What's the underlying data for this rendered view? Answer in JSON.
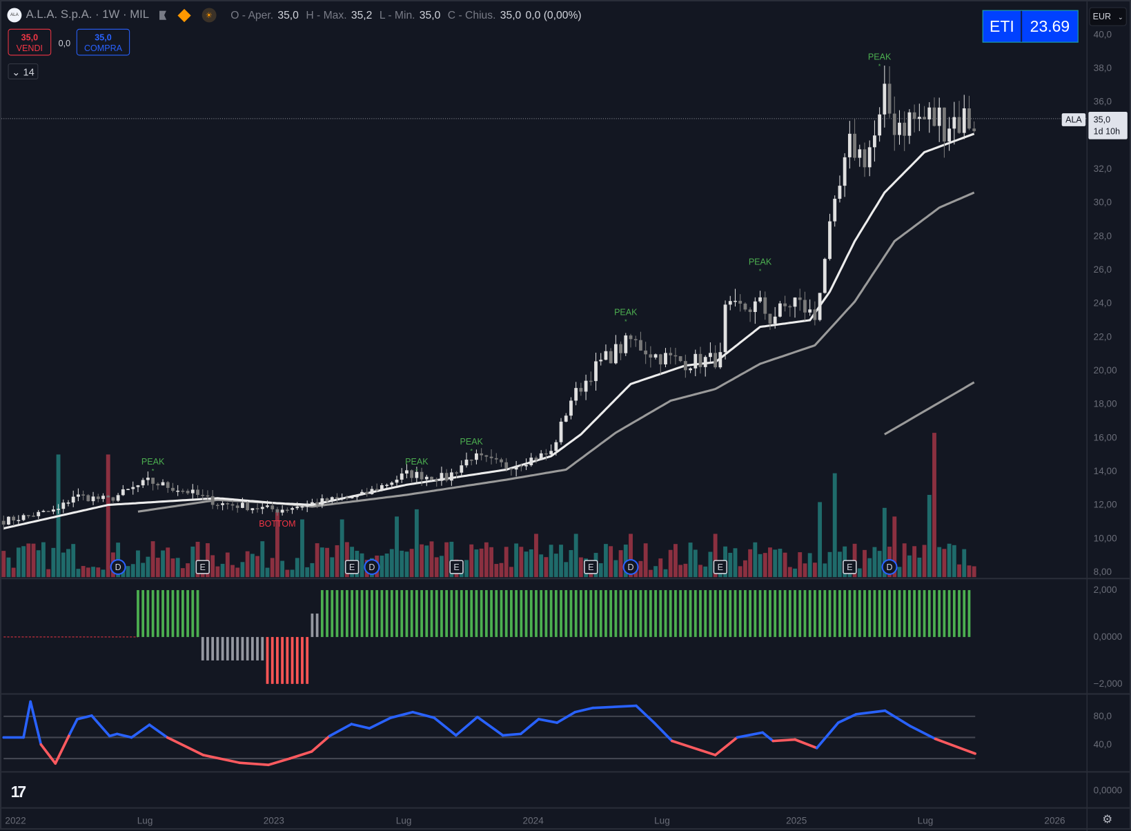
{
  "header": {
    "logo_text": "ALA",
    "symbol": "A.L.A. S.p.A. · 1W · MIL",
    "ohlc": [
      {
        "k": "O - Aper.",
        "v": "35,0"
      },
      {
        "k": "H - Max.",
        "v": "35,2"
      },
      {
        "k": "L - Min.",
        "v": "35,0"
      },
      {
        "k": "C - Chius.",
        "v": "35,0"
      }
    ],
    "change": "0,0 (0,00%)"
  },
  "trade": {
    "sell_price": "35,0",
    "sell_label": "VENDI",
    "spread": "0,0",
    "buy_price": "35,0",
    "buy_label": "COMPRA"
  },
  "indicators_collapsed": "14",
  "eti": {
    "label": "ETI",
    "value": "23.69"
  },
  "currency": "EUR",
  "last_price": {
    "tag": "ALA",
    "price": "35,0",
    "countdown": "1d 10h"
  },
  "colors": {
    "bg": "#131722",
    "up": "#e0e0e0",
    "down": "#7a7a7a",
    "vol_up": "#1f6b6b",
    "vol_down": "#8b3040",
    "green": "#4caf50",
    "red": "#f23645",
    "blue": "#2962ff",
    "peak": "#4caf50"
  },
  "chart_data": {
    "type": "candlestick",
    "weeks": 196,
    "price_range": [
      8,
      40
    ],
    "price_ticks": [
      "40,0",
      "38,0",
      "36,0",
      "32,0",
      "30,0",
      "28,0",
      "26,0",
      "24,0",
      "22,0",
      "20,00",
      "18,00",
      "16,00",
      "14,00",
      "12,00",
      "10,00",
      "8,00"
    ],
    "price_tick_values": [
      40,
      38,
      36,
      32,
      30,
      28,
      26,
      24,
      22,
      20,
      18,
      16,
      14,
      12,
      10,
      8
    ],
    "close_keypoints": [
      [
        0,
        11.05
      ],
      [
        11,
        11.7
      ],
      [
        14,
        12.55
      ],
      [
        21,
        12.3
      ],
      [
        29,
        13.4
      ],
      [
        37,
        12.8
      ],
      [
        43,
        12.1
      ],
      [
        55,
        11.7
      ],
      [
        62,
        12.1
      ],
      [
        72,
        12.55
      ],
      [
        81,
        13.85
      ],
      [
        89,
        13.6
      ],
      [
        94,
        14.9
      ],
      [
        101,
        14.3
      ],
      [
        110,
        15.1
      ],
      [
        114,
        18.3
      ],
      [
        120,
        20.5
      ],
      [
        126,
        21.8
      ],
      [
        131,
        20.9
      ],
      [
        137,
        20.5
      ],
      [
        144,
        20.7
      ],
      [
        145,
        23.5
      ],
      [
        152,
        23.9
      ],
      [
        154,
        23.1
      ],
      [
        159,
        24.2
      ],
      [
        163,
        23.1
      ],
      [
        165,
        26.9
      ],
      [
        168,
        30.8
      ],
      [
        170,
        33.4
      ],
      [
        173,
        32.7
      ],
      [
        176,
        34.5
      ],
      [
        177,
        35.8
      ],
      [
        179,
        34.9
      ],
      [
        195,
        35.0
      ]
    ],
    "ma_fast": [
      [
        0,
        10.6
      ],
      [
        21,
        12.0
      ],
      [
        43,
        12.4
      ],
      [
        55,
        12.1
      ],
      [
        62,
        12.0
      ],
      [
        81,
        13.2
      ],
      [
        101,
        14.1
      ],
      [
        110,
        14.9
      ],
      [
        116,
        16.2
      ],
      [
        126,
        19.2
      ],
      [
        137,
        20.3
      ],
      [
        143,
        20.5
      ],
      [
        152,
        22.6
      ],
      [
        162,
        23.0
      ],
      [
        166,
        24.7
      ],
      [
        171,
        27.7
      ],
      [
        177,
        30.6
      ],
      [
        185,
        33.0
      ],
      [
        195,
        34.1
      ]
    ],
    "ma_slow": [
      [
        27,
        11.6
      ],
      [
        43,
        12.3
      ],
      [
        55,
        12.1
      ],
      [
        62,
        11.9
      ],
      [
        81,
        12.6
      ],
      [
        101,
        13.5
      ],
      [
        113,
        14.1
      ],
      [
        123,
        16.3
      ],
      [
        134,
        18.2
      ],
      [
        143,
        18.9
      ],
      [
        152,
        20.4
      ],
      [
        163,
        21.5
      ],
      [
        171,
        24.1
      ],
      [
        179,
        27.7
      ],
      [
        188,
        29.7
      ],
      [
        195,
        30.6
      ]
    ],
    "ma_third": [
      [
        177,
        16.2
      ],
      [
        195,
        19.3
      ]
    ],
    "volume_spikes": [
      [
        11,
        0.85
      ],
      [
        21,
        0.85
      ],
      [
        55,
        0.45
      ],
      [
        60,
        0.4
      ],
      [
        68,
        0.4
      ],
      [
        79,
        0.42
      ],
      [
        83,
        0.47
      ],
      [
        107,
        0.3
      ],
      [
        115,
        0.3
      ],
      [
        126,
        0.3
      ],
      [
        143,
        0.3
      ],
      [
        164,
        0.52
      ],
      [
        167,
        0.72
      ],
      [
        177,
        0.48
      ],
      [
        179,
        0.42
      ],
      [
        186,
        0.57
      ],
      [
        187,
        1.0
      ]
    ],
    "events": [
      {
        "type": "D",
        "week": 23
      },
      {
        "type": "E",
        "week": 40
      },
      {
        "type": "E",
        "week": 70
      },
      {
        "type": "D",
        "week": 74
      },
      {
        "type": "E",
        "week": 91
      },
      {
        "type": "E",
        "week": 118
      },
      {
        "type": "D",
        "week": 126
      },
      {
        "type": "E",
        "week": 144
      },
      {
        "type": "E",
        "week": 170
      },
      {
        "type": "D",
        "week": 178
      }
    ],
    "annotations": [
      {
        "text": "PEAK",
        "week": 30,
        "price": 14.4
      },
      {
        "text": "PEAK",
        "week": 83,
        "price": 14.4
      },
      {
        "text": "PEAK",
        "week": 94,
        "price": 15.6
      },
      {
        "text": "PEAK",
        "week": 125,
        "price": 23.3
      },
      {
        "text": "PEAK",
        "week": 152,
        "price": 26.3
      },
      {
        "text": "PEAK",
        "week": 176,
        "price": 38.5
      },
      {
        "text": "BOTTOM",
        "week": 55,
        "price": 10.7,
        "kind": "bottom"
      }
    ],
    "histogram": {
      "range": [
        -2,
        2
      ],
      "ticks": [
        "2,000",
        "0,0000",
        "−2,000"
      ],
      "tick_values": [
        2,
        0,
        -2
      ],
      "segments": [
        {
          "from": 27,
          "to": 40,
          "value": 2,
          "color": "green"
        },
        {
          "from": 40,
          "to": 53,
          "value": -1,
          "color": "gray"
        },
        {
          "from": 53,
          "to": 62,
          "value": -2,
          "color": "red"
        },
        {
          "from": 62,
          "to": 64,
          "value": 1,
          "color": "gray"
        },
        {
          "from": 64,
          "to": 195,
          "value": 2,
          "color": "green"
        }
      ]
    },
    "oscillator": {
      "ticks": [
        "80,0",
        "40,0"
      ],
      "tick_values": [
        80,
        40
      ],
      "levels": [
        80,
        50,
        20
      ],
      "threshold": 50,
      "points": [
        [
          0,
          50
        ],
        [
          4,
          50
        ],
        [
          5.4,
          101
        ],
        [
          7.5,
          40
        ],
        [
          10.4,
          13
        ],
        [
          13.3,
          55
        ],
        [
          14.8,
          76
        ],
        [
          17.7,
          81
        ],
        [
          21.3,
          52
        ],
        [
          22.8,
          55
        ],
        [
          25.7,
          50
        ],
        [
          29.3,
          68
        ],
        [
          32.9,
          50
        ],
        [
          40.1,
          25
        ],
        [
          47.4,
          14
        ],
        [
          53.2,
          11
        ],
        [
          57.5,
          20
        ],
        [
          61.9,
          30
        ],
        [
          65.5,
          52
        ],
        [
          69.9,
          69
        ],
        [
          73.5,
          63
        ],
        [
          77.8,
          78
        ],
        [
          82.2,
          86
        ],
        [
          86.5,
          78
        ],
        [
          90.9,
          53
        ],
        [
          95.2,
          79
        ],
        [
          100.3,
          53
        ],
        [
          103.9,
          55
        ],
        [
          107.5,
          76
        ],
        [
          111.2,
          71
        ],
        [
          114.8,
          86
        ],
        [
          118.4,
          92
        ],
        [
          127.1,
          95
        ],
        [
          130.7,
          71
        ],
        [
          134.3,
          45
        ],
        [
          143,
          25
        ],
        [
          147.4,
          50
        ],
        [
          152.5,
          57
        ],
        [
          154.6,
          45
        ],
        [
          159,
          47
        ],
        [
          163.4,
          35
        ],
        [
          167.7,
          71
        ],
        [
          171.3,
          83
        ],
        [
          177.1,
          88
        ],
        [
          182.2,
          66
        ],
        [
          187.2,
          48
        ],
        [
          195.2,
          27
        ]
      ]
    },
    "bottom_pane_tick": "0,0000",
    "time_ticks": [
      {
        "label": "2022",
        "week": 2.4
      },
      {
        "label": "Lug",
        "week": 28.4
      },
      {
        "label": "2023",
        "week": 54.3
      },
      {
        "label": "Lug",
        "week": 80.4
      },
      {
        "label": "2024",
        "week": 106.4
      },
      {
        "label": "Lug",
        "week": 132.3
      },
      {
        "label": "2025",
        "week": 159.3
      },
      {
        "label": "Lug",
        "week": 185.2
      },
      {
        "label": "2026",
        "week": 211.2
      }
    ]
  }
}
